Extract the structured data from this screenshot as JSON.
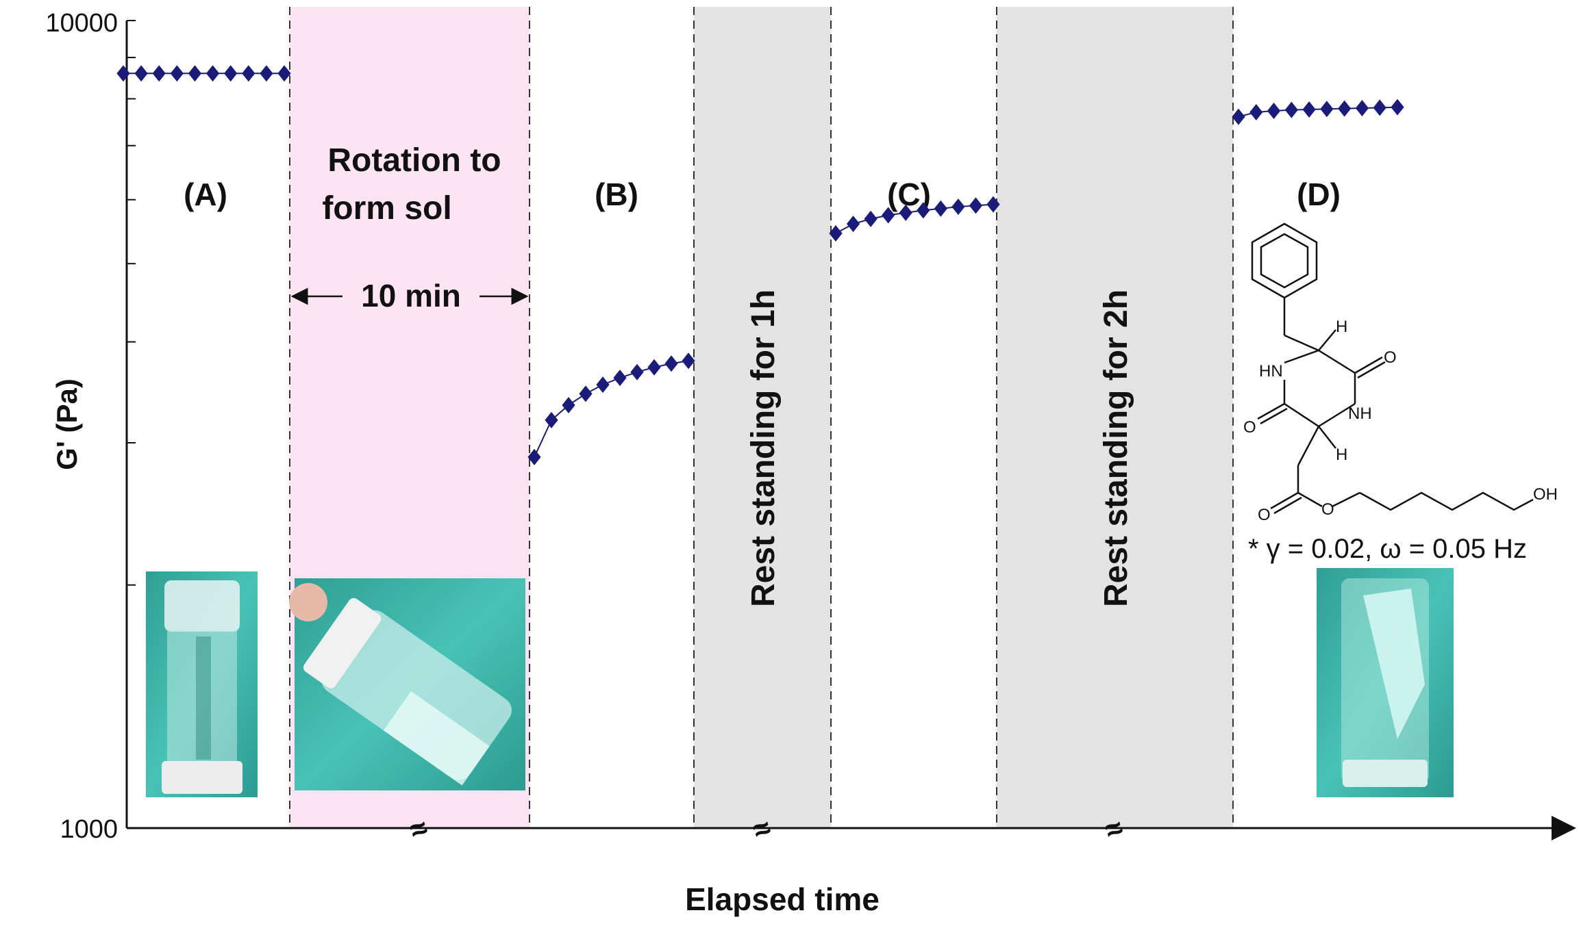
{
  "chart_data": {
    "type": "scatter",
    "title": "",
    "xlabel": "Elapsed time",
    "ylabel": "G' (Pa)",
    "yscale": "log",
    "ylim": [
      1000,
      10000
    ],
    "yticks": [
      "10000",
      "1000"
    ],
    "grid": false,
    "series": [
      {
        "segment": "A",
        "x": [
          0,
          1,
          2,
          3,
          4,
          5,
          6,
          7,
          8,
          9
        ],
        "values": [
          8600,
          8600,
          8600,
          8600,
          8600,
          8600,
          8600,
          8600,
          8600,
          8600
        ]
      },
      {
        "segment": "B",
        "x": [
          0,
          1,
          2,
          3,
          4,
          5,
          6,
          7,
          8,
          9
        ],
        "values": [
          2880,
          3200,
          3340,
          3450,
          3540,
          3610,
          3670,
          3720,
          3760,
          3790
        ]
      },
      {
        "segment": "C",
        "x": [
          0,
          1,
          2,
          3,
          4,
          5,
          6,
          7,
          8,
          9
        ],
        "values": [
          5450,
          5600,
          5680,
          5740,
          5780,
          5820,
          5850,
          5880,
          5900,
          5920
        ]
      },
      {
        "segment": "D",
        "x": [
          0,
          1,
          2,
          3,
          4,
          5,
          6,
          7,
          8,
          9
        ],
        "values": [
          7600,
          7700,
          7730,
          7750,
          7760,
          7770,
          7780,
          7790,
          7800,
          7810
        ]
      }
    ],
    "segment_labels": [
      "(A)",
      "(B)",
      "(C)",
      "(D)"
    ],
    "annotations": {
      "rotation": "Rotation to form sol",
      "duration": "10 min",
      "rest1": "Rest standing for 1h",
      "rest2": "Rest standing for 2h",
      "condition": "* γ = 0.02, ω = 0.05 Hz",
      "axis_break": "≈"
    },
    "colors": {
      "marker": "#1b1b7a",
      "pink_band": "#fce4f3",
      "gray_band": "#e3e3e3",
      "photo_teal": "#3fb3a8"
    },
    "molecule": {
      "atoms": [
        "HN",
        "NH",
        "O",
        "O",
        "H",
        "H",
        "O",
        "O",
        "OH"
      ]
    }
  }
}
